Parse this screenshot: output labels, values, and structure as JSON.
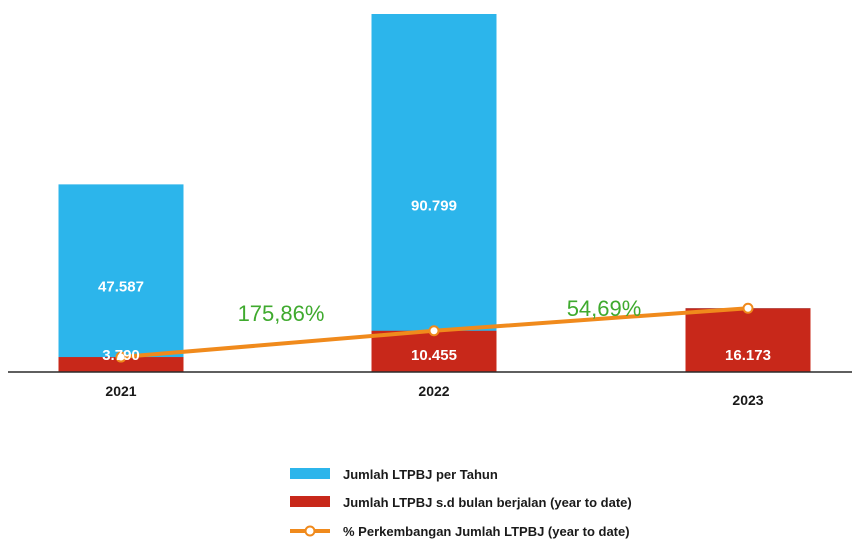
{
  "chart_data": {
    "type": "bar",
    "categories": [
      "2021",
      "2022",
      "2023"
    ],
    "series": [
      {
        "name": "Jumlah LTPBJ per Tahun",
        "kind": "bar",
        "color": "#2cb5eb",
        "values": [
          47587,
          90799,
          16173
        ],
        "labels": [
          "47.587",
          "90.799",
          ""
        ]
      },
      {
        "name": "Jumlah LTPBJ s.d bulan berjalan (year to date)",
        "kind": "bar",
        "color": "#c8281a",
        "values": [
          3790,
          10455,
          16173
        ],
        "labels": [
          "3.790",
          "10.455",
          "16.173"
        ]
      },
      {
        "name": "% Perkembangan Jumlah LTPBJ (year to date)",
        "kind": "line",
        "color": "#f08a1c",
        "values": [
          3790,
          10455,
          16173
        ]
      }
    ],
    "growth_labels": [
      "175,86%",
      "54,69%"
    ],
    "legend_position": "bottom",
    "grid": false
  }
}
